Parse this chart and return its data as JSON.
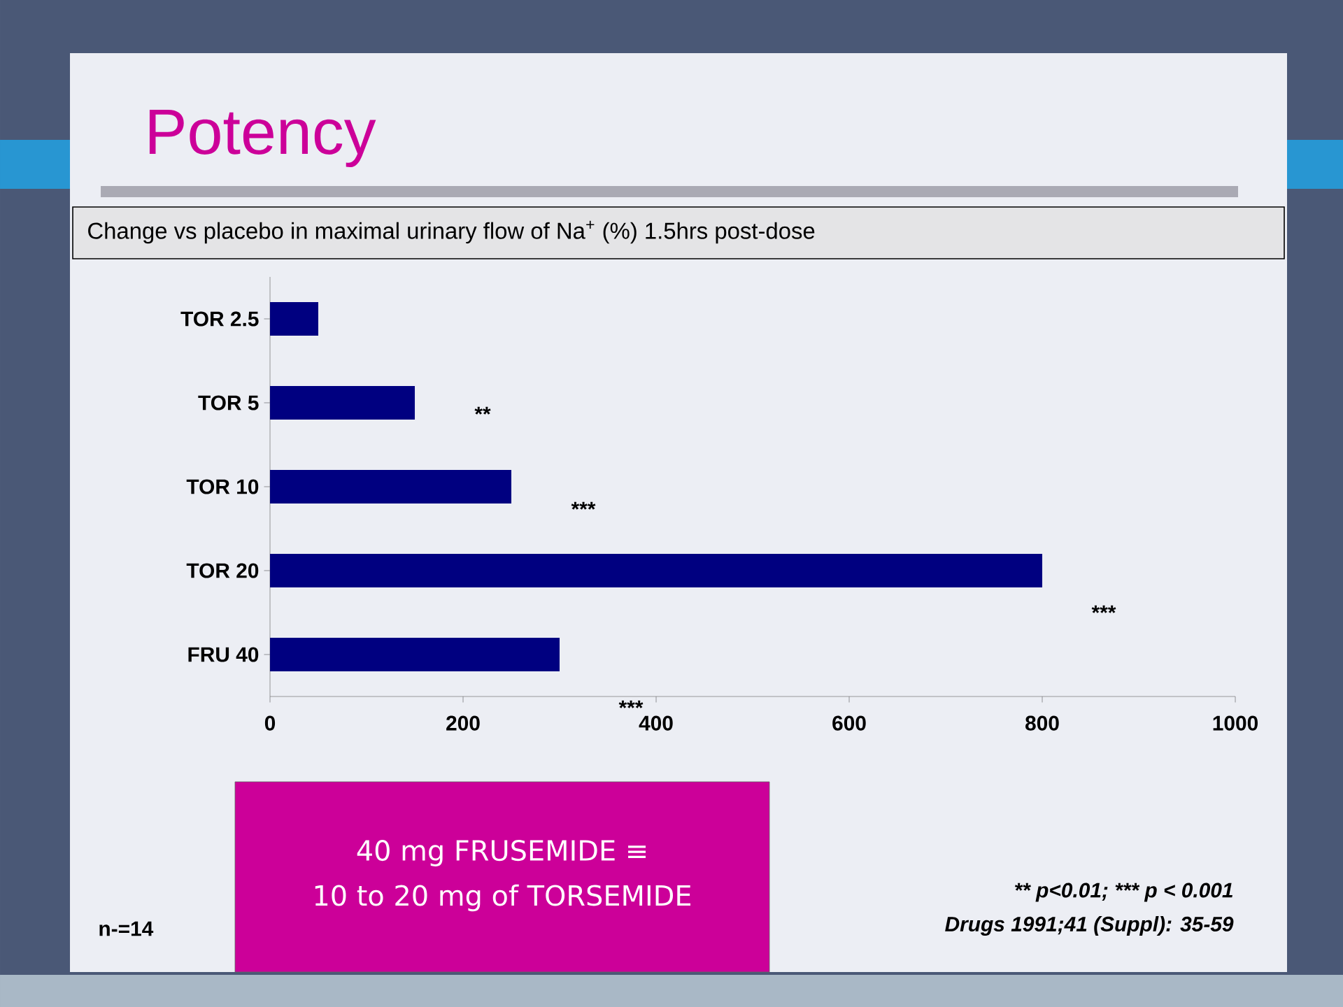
{
  "chart_data": {
    "type": "bar",
    "orientation": "horizontal",
    "title": "Potency",
    "subtitle": "Change vs placebo in maximal urinary flow of Na$^{+}$ (%) 1.5hrs post-dose",
    "categories": [
      "TOR 2.5",
      "TOR 5",
      "TOR 10",
      "TOR 20",
      "FRU 40"
    ],
    "values": [
      50,
      150,
      250,
      800,
      300
    ],
    "color": "#000080",
    "xlim": [
      0,
      1000
    ],
    "xticks": [
      0,
      200,
      400,
      600,
      800,
      1000
    ],
    "grid": false,
    "annotations": [
      "**",
      "***",
      "***",
      "***",
      "40 mg FRUSEMIDE ≡",
      "10 to 20 mg of TORSEMIDE",
      "** p<0.01; *** p < 0.001",
      "Drugs 1991;41 (Suppl): 35-59",
      "n-=14"
    ]
  }
}
